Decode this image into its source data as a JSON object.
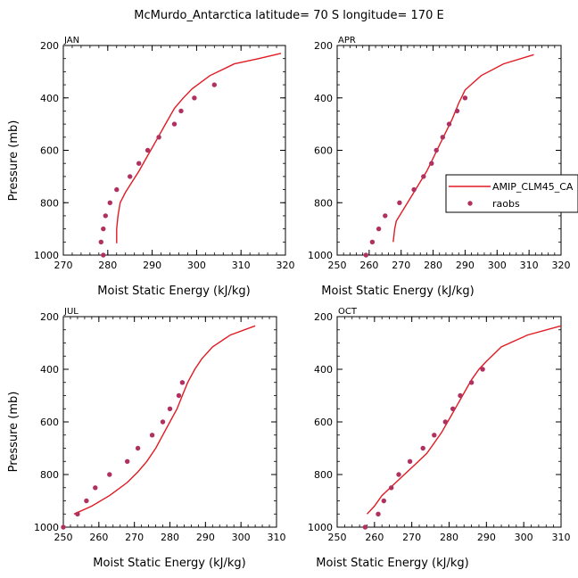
{
  "title": "McMurdo_Antarctica  latitude= 70 S longitude= 170 E",
  "xlabel": "Moist Static Energy (kJ/kg)",
  "ylabel": "Pressure (mb)",
  "colors": {
    "model": "#e01b24",
    "obs": "#b03060"
  },
  "legend": {
    "model_label": "AMIP_CLM45_CA",
    "obs_label": "raobs",
    "panel": "APR",
    "placement": "right of APR panel"
  },
  "chart_data": [
    {
      "type": "line",
      "panel": "JAN",
      "xlim": [
        270,
        320
      ],
      "ylim": [
        1000,
        200
      ],
      "xticks": [
        "270",
        "280",
        "290",
        "300",
        "310",
        "320"
      ],
      "yticks": [
        "200",
        "400",
        "600",
        "800",
        "1000"
      ],
      "series": [
        {
          "name": "AMIP_CLM45_CA",
          "style": "line",
          "points": [
            [
              282,
              955
            ],
            [
              282,
              900
            ],
            [
              282.3,
              850
            ],
            [
              282.8,
              800
            ],
            [
              284,
              760
            ],
            [
              285.5,
              720
            ],
            [
              287,
              680
            ],
            [
              289,
              620
            ],
            [
              291,
              560
            ],
            [
              293,
              500
            ],
            [
              295,
              440
            ],
            [
              297,
              400
            ],
            [
              299,
              365
            ],
            [
              303,
              315
            ],
            [
              308.5,
              270
            ],
            [
              314,
              250
            ],
            [
              319,
              230
            ]
          ]
        },
        {
          "name": "raobs",
          "style": "markers",
          "points": [
            [
              279,
              1000
            ],
            [
              278.5,
              950
            ],
            [
              279,
              900
            ],
            [
              279.5,
              850
            ],
            [
              280.5,
              800
            ],
            [
              282,
              750
            ],
            [
              285,
              700
            ],
            [
              287,
              650
            ],
            [
              289,
              600
            ],
            [
              291.5,
              550
            ],
            [
              295,
              500
            ],
            [
              296.5,
              450
            ],
            [
              299.5,
              400
            ],
            [
              304,
              350
            ]
          ]
        }
      ]
    },
    {
      "type": "line",
      "panel": "APR",
      "xlim": [
        250,
        320
      ],
      "ylim": [
        1000,
        200
      ],
      "xticks": [
        "250",
        "260",
        "270",
        "280",
        "290",
        "300",
        "310",
        "320"
      ],
      "yticks": [
        "200",
        "400",
        "600",
        "800",
        "1000"
      ],
      "series": [
        {
          "name": "AMIP_CLM45_CA",
          "style": "line",
          "points": [
            [
              267.5,
              950
            ],
            [
              268,
              900
            ],
            [
              268.5,
              870
            ],
            [
              270,
              840
            ],
            [
              272,
              800
            ],
            [
              274,
              760
            ],
            [
              276,
              720
            ],
            [
              278,
              680
            ],
            [
              280,
              630
            ],
            [
              282,
              580
            ],
            [
              284,
              530
            ],
            [
              286,
              480
            ],
            [
              288,
              420
            ],
            [
              290,
              370
            ],
            [
              295,
              315
            ],
            [
              302,
              270
            ],
            [
              311.5,
              235
            ]
          ]
        },
        {
          "name": "raobs",
          "style": "markers",
          "points": [
            [
              259,
              1000
            ],
            [
              261,
              950
            ],
            [
              263,
              900
            ],
            [
              265,
              850
            ],
            [
              269.5,
              800
            ],
            [
              274,
              750
            ],
            [
              277,
              700
            ],
            [
              279.5,
              650
            ],
            [
              281,
              600
            ],
            [
              283,
              550
            ],
            [
              285,
              500
            ],
            [
              287.5,
              450
            ],
            [
              290,
              400
            ]
          ]
        }
      ]
    },
    {
      "type": "line",
      "panel": "JUL",
      "xlim": [
        250,
        310
      ],
      "ylim": [
        1000,
        200
      ],
      "xticks": [
        "250",
        "260",
        "270",
        "280",
        "290",
        "300",
        "310"
      ],
      "yticks": [
        "200",
        "400",
        "600",
        "800",
        "1000"
      ],
      "series": [
        {
          "name": "AMIP_CLM45_CA",
          "style": "line",
          "points": [
            [
              253,
              950
            ],
            [
              258,
              920
            ],
            [
              263,
              880
            ],
            [
              268,
              830
            ],
            [
              271,
              790
            ],
            [
              273.5,
              750
            ],
            [
              276,
              700
            ],
            [
              278,
              650
            ],
            [
              280,
              600
            ],
            [
              282,
              550
            ],
            [
              283.5,
              500
            ],
            [
              285,
              450
            ],
            [
              287,
              400
            ],
            [
              289,
              360
            ],
            [
              292,
              315
            ],
            [
              297,
              270
            ],
            [
              304,
              235
            ]
          ]
        },
        {
          "name": "raobs",
          "style": "markers",
          "points": [
            [
              250,
              1000
            ],
            [
              254,
              950
            ],
            [
              256.5,
              900
            ],
            [
              259,
              850
            ],
            [
              263,
              800
            ],
            [
              268,
              750
            ],
            [
              271,
              700
            ],
            [
              275,
              650
            ],
            [
              278,
              600
            ],
            [
              280,
              550
            ],
            [
              282.5,
              500
            ],
            [
              283.5,
              450
            ]
          ]
        }
      ]
    },
    {
      "type": "line",
      "panel": "OCT",
      "xlim": [
        250,
        310
      ],
      "ylim": [
        1000,
        200
      ],
      "xticks": [
        "250",
        "260",
        "270",
        "280",
        "290",
        "300",
        "310"
      ],
      "yticks": [
        "200",
        "400",
        "600",
        "800",
        "1000"
      ],
      "series": [
        {
          "name": "AMIP_CLM45_CA",
          "style": "line",
          "points": [
            [
              258,
              950
            ],
            [
              260,
              920
            ],
            [
              262,
              880
            ],
            [
              265,
              840
            ],
            [
              268,
              800
            ],
            [
              271,
              760
            ],
            [
              274,
              720
            ],
            [
              276,
              680
            ],
            [
              278,
              640
            ],
            [
              280,
              590
            ],
            [
              282,
              540
            ],
            [
              284,
              490
            ],
            [
              286,
              440
            ],
            [
              288,
              400
            ],
            [
              290,
              370
            ],
            [
              294,
              315
            ],
            [
              301,
              270
            ],
            [
              310,
              235
            ]
          ]
        },
        {
          "name": "raobs",
          "style": "markers",
          "points": [
            [
              257.5,
              1000
            ],
            [
              261,
              950
            ],
            [
              262.5,
              900
            ],
            [
              264.5,
              850
            ],
            [
              266.5,
              800
            ],
            [
              269.5,
              750
            ],
            [
              273,
              700
            ],
            [
              276,
              650
            ],
            [
              279,
              600
            ],
            [
              281,
              550
            ],
            [
              283,
              500
            ],
            [
              286,
              450
            ],
            [
              289,
              400
            ]
          ]
        }
      ]
    }
  ]
}
